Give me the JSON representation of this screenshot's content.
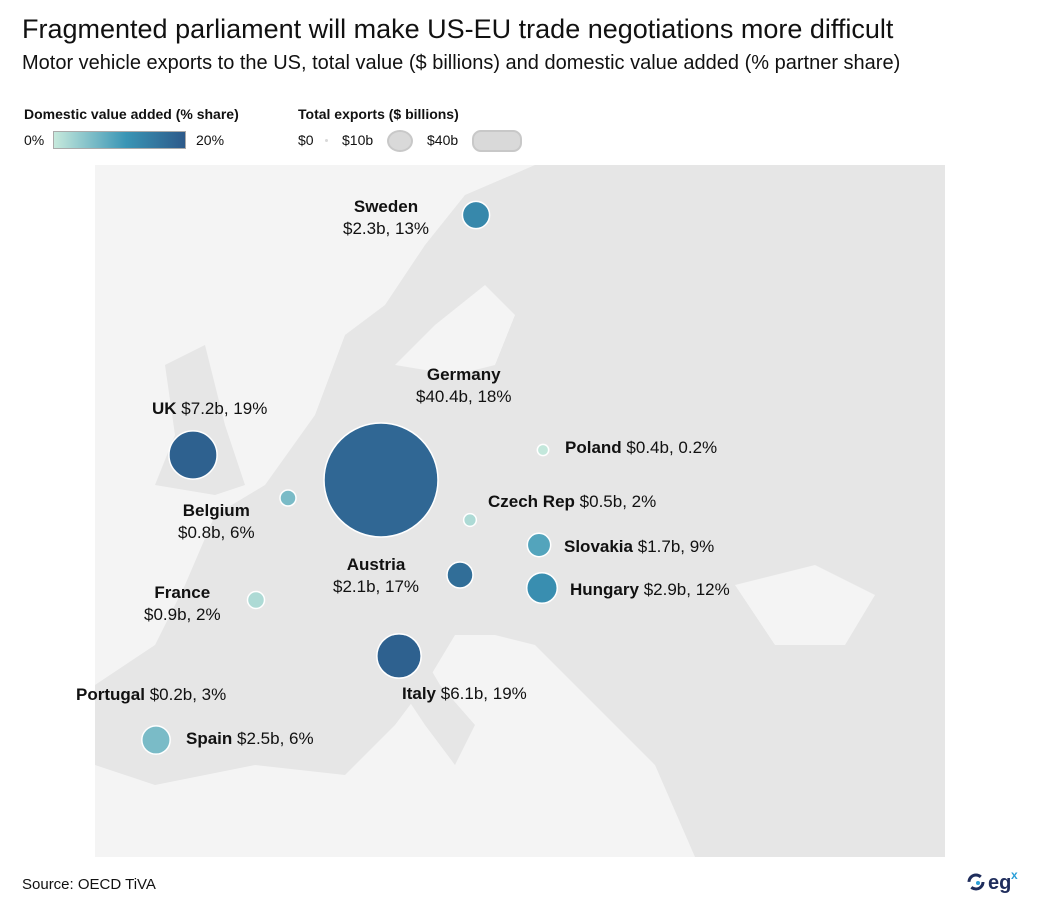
{
  "title": "Fragmented parliament will make US-EU trade negotiations more difficult",
  "subtitle": "Motor vehicle exports to the US, total value ($ billions) and domestic value added (% partner share)",
  "legend": {
    "color_title": "Domestic value added (% share)",
    "color_min": "0%",
    "color_max": "20%",
    "color_range": [
      "#c6e9dc",
      "#3a95b5",
      "#2d5a8a"
    ],
    "size_title": "Total exports ($ billions)",
    "size_labels": [
      "$0",
      "$10b",
      "$40b"
    ]
  },
  "chart_data": {
    "type": "scatter",
    "encoding": "bubble map; size = total exports ($ billions), color = domestic value added (% share)",
    "points": [
      {
        "country": "Sweden",
        "value_label": "$2.3b, 13%",
        "exports": 2.3,
        "share": 13
      },
      {
        "country": "UK",
        "value_label": "$7.2b, 19%",
        "exports": 7.2,
        "share": 19
      },
      {
        "country": "Germany",
        "value_label": "$40.4b, 18%",
        "exports": 40.4,
        "share": 18
      },
      {
        "country": "Belgium",
        "value_label": "$0.8b, 6%",
        "exports": 0.8,
        "share": 6
      },
      {
        "country": "Poland",
        "value_label": "$0.4b, 0.2%",
        "exports": 0.4,
        "share": 0.2
      },
      {
        "country": "Czech Rep",
        "value_label": "$0.5b, 2%",
        "exports": 0.5,
        "share": 2
      },
      {
        "country": "Slovakia",
        "value_label": "$1.7b, 9%",
        "exports": 1.7,
        "share": 9
      },
      {
        "country": "Austria",
        "value_label": "$2.1b, 17%",
        "exports": 2.1,
        "share": 17
      },
      {
        "country": "Hungary",
        "value_label": "$2.9b, 12%",
        "exports": 2.9,
        "share": 12
      },
      {
        "country": "France",
        "value_label": "$0.9b, 2%",
        "exports": 0.9,
        "share": 2
      },
      {
        "country": "Italy",
        "value_label": "$6.1b, 19%",
        "exports": 6.1,
        "share": 19
      },
      {
        "country": "Portugal",
        "value_label": "$0.2b, 3%",
        "exports": 0.2,
        "share": 3
      },
      {
        "country": "Spain",
        "value_label": "$2.5b, 6%",
        "exports": 2.5,
        "share": 6
      }
    ]
  },
  "source": "Source: OECD TiVA",
  "logo_text": "egx"
}
